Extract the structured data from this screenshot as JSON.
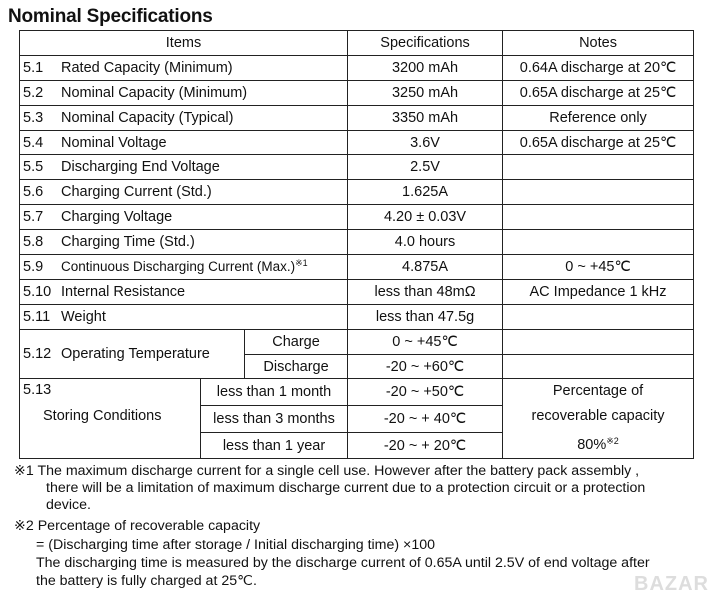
{
  "title": "Nominal Specifications",
  "headers": {
    "items": "Items",
    "specs": "Specifications",
    "notes": "Notes"
  },
  "rows": [
    {
      "no": "5.1",
      "item": "Rated Capacity (Minimum)",
      "spec": "3200 mAh",
      "note": "0.64A discharge at 20℃"
    },
    {
      "no": "5.2",
      "item": "Nominal Capacity (Minimum)",
      "spec": "3250 mAh",
      "note": "0.65A discharge at 25℃"
    },
    {
      "no": "5.3",
      "item": "Nominal Capacity (Typical)",
      "spec": "3350 mAh",
      "note": "Reference only"
    },
    {
      "no": "5.4",
      "item": "Nominal Voltage",
      "spec": "3.6V",
      "note": "0.65A discharge at 25℃"
    },
    {
      "no": "5.5",
      "item": "Discharging End Voltage",
      "spec": "2.5V",
      "note": ""
    },
    {
      "no": "5.6",
      "item": "Charging Current (Std.)",
      "spec": "1.625A",
      "note": ""
    },
    {
      "no": "5.7",
      "item": "Charging Voltage",
      "spec": "4.20 ± 0.03V",
      "note": ""
    },
    {
      "no": "5.8",
      "item": "Charging Time (Std.)",
      "spec": "4.0 hours",
      "note": ""
    },
    {
      "no": "5.9",
      "item": "Continuous Discharging Current (Max.)",
      "mark": "※1",
      "spec": "4.875A",
      "note": "0 ~ +45℃"
    },
    {
      "no": "5.10",
      "item": "Internal Resistance",
      "spec": "less than 48mΩ",
      "note": "AC Impedance 1 kHz"
    },
    {
      "no": "5.11",
      "item": "Weight",
      "spec": "less than 47.5g",
      "note": ""
    }
  ],
  "operating": {
    "no": "5.12",
    "item": "Operating Temperature",
    "sub": [
      {
        "label": "Charge",
        "spec": "0 ~ +45℃"
      },
      {
        "label": "Discharge",
        "spec": "-20 ~ +60℃"
      }
    ]
  },
  "storing": {
    "no": "5.13",
    "item": "Storing Conditions",
    "sub": [
      {
        "label": "less than 1 month",
        "spec": "-20 ~ +50℃"
      },
      {
        "label": "less than 3 months",
        "spec": "-20 ~ + 40℃"
      },
      {
        "label": "less than 1 year",
        "spec": "-20 ~ + 20℃"
      }
    ],
    "note_lines": [
      "Percentage of",
      "recoverable capacity",
      "80%"
    ],
    "note_mark": "※2"
  },
  "footnotes": {
    "f1_lines": [
      "※1 The maximum discharge current for a single cell use. However after the battery pack assembly ,",
      "there will be a limitation of maximum discharge current due to a protection circuit or a protection",
      "device."
    ],
    "f2_lines": [
      "※2 Percentage of recoverable capacity",
      "= (Discharging time after storage / Initial discharging time) ×100",
      "The discharging time is measured by the discharge current of 0.65A until 2.5V of end voltage after",
      "the battery is fully charged at 25℃."
    ]
  },
  "watermark": "BAZAR"
}
